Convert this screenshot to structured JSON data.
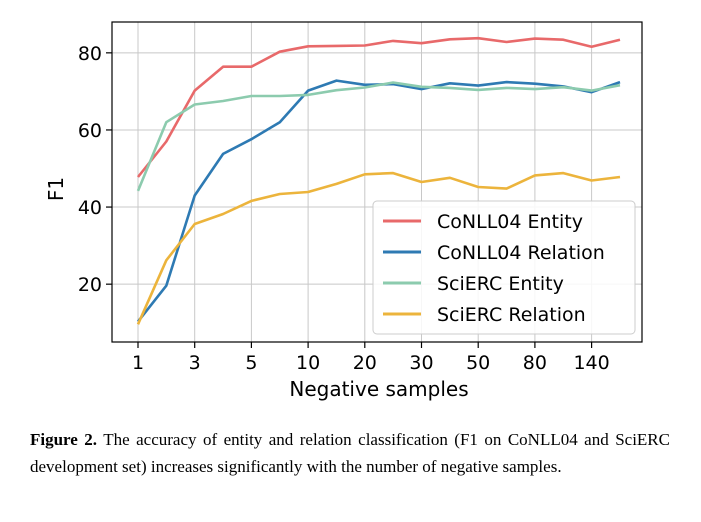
{
  "chart_data": {
    "type": "line",
    "xlabel": "Negative samples",
    "ylabel": "F1",
    "ylim": [
      5,
      88
    ],
    "yticks": [
      20,
      40,
      60,
      80
    ],
    "x_categories": [
      "1",
      "2",
      "3",
      "4",
      "5",
      "7",
      "10",
      "15",
      "20",
      "25",
      "30",
      "40",
      "50",
      "60",
      "80",
      "100",
      "140",
      "200"
    ],
    "xtick_labels": [
      "1",
      "3",
      "5",
      "10",
      "20",
      "30",
      "50",
      "80",
      "140"
    ],
    "grid": true,
    "legend_position": "lower-right",
    "series": [
      {
        "name": "CoNLL04 Entity",
        "color": "#e8696a",
        "values": [
          47.8,
          57.0,
          70.2,
          76.4,
          76.4,
          80.3,
          81.7,
          81.8,
          81.9,
          83.1,
          82.5,
          83.5,
          83.8,
          82.8,
          83.7,
          83.4,
          81.6,
          83.4
        ]
      },
      {
        "name": "CoNLL04 Relation",
        "color": "#2e7ab3",
        "values": [
          10.3,
          19.6,
          43.0,
          53.8,
          57.6,
          62.0,
          70.2,
          72.8,
          71.7,
          71.9,
          70.6,
          72.1,
          71.5,
          72.4,
          72.0,
          71.3,
          69.8,
          72.4
        ]
      },
      {
        "name": "SciERC Entity",
        "color": "#8ccbae",
        "values": [
          44.2,
          62.0,
          66.6,
          67.5,
          68.8,
          68.8,
          69.1,
          70.3,
          71.0,
          72.3,
          71.2,
          70.9,
          70.4,
          70.9,
          70.6,
          71.1,
          70.2,
          71.6
        ]
      },
      {
        "name": "SciERC Relation",
        "color": "#ecb43c",
        "values": [
          9.6,
          26.2,
          35.6,
          38.2,
          41.6,
          43.4,
          43.9,
          46.0,
          48.5,
          48.8,
          46.5,
          47.6,
          45.2,
          44.8,
          48.2,
          48.8,
          46.9,
          47.8
        ]
      }
    ]
  },
  "caption": {
    "label": "Figure 2.",
    "text": "The accuracy of entity and relation classification (F1 on CoNLL04 and SciERC development set) increases significantly with the number of negative samples."
  }
}
